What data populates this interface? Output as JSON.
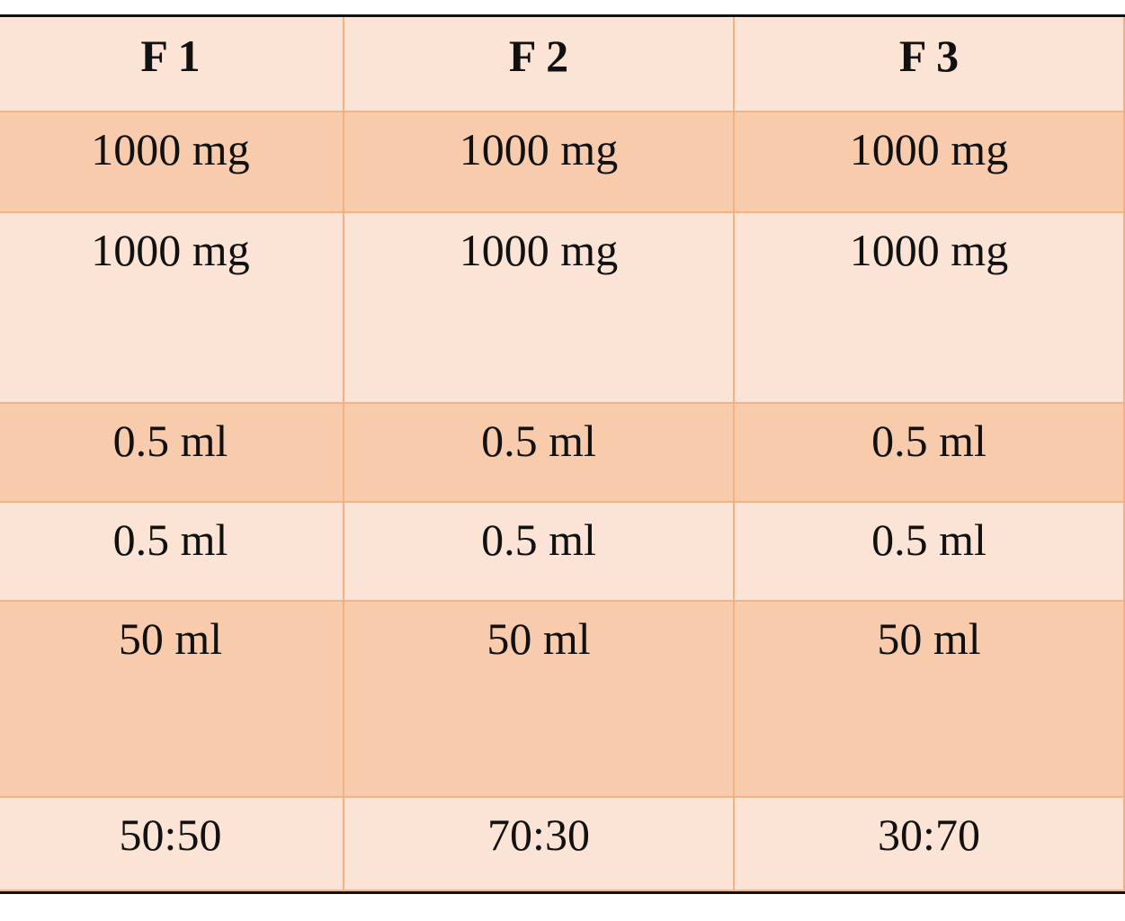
{
  "table": {
    "header": [
      "F 1",
      "F 2",
      "F 3"
    ],
    "rows": [
      [
        "1000 mg",
        "1000 mg",
        "1000 mg"
      ],
      [
        "1000 mg",
        "1000 mg",
        "1000 mg"
      ],
      [
        "0.5 ml",
        "0.5 ml",
        "0.5 ml"
      ],
      [
        "0.5 ml",
        "0.5 ml",
        "0.5 ml"
      ],
      [
        "50 ml",
        "50 ml",
        "50 ml"
      ],
      [
        "50:50",
        "70:30",
        "30:70"
      ]
    ]
  }
}
